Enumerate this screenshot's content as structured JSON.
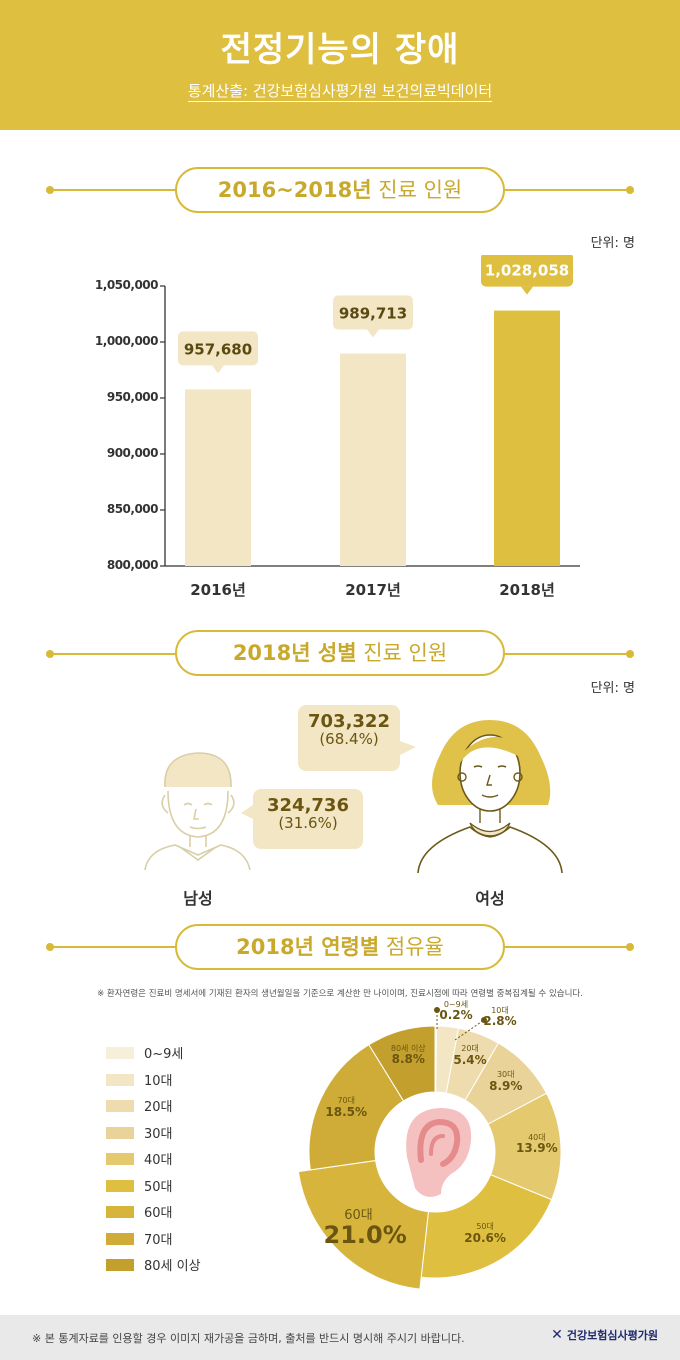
{
  "header": {
    "title": "전정기능의 장애",
    "source": "통계산출: 건강보험심사평가원 보건의료빅데이터"
  },
  "sections": {
    "s1": {
      "bold": "2016~2018년",
      "light": " 진료 인원"
    },
    "s2": {
      "bold": "2018년 성별",
      "light": " 진료 인원"
    },
    "s3": {
      "bold": "2018년 연령별",
      "light": " 점유율"
    }
  },
  "chart_data": [
    {
      "type": "bar",
      "title": "2016~2018년 진료 인원",
      "unit": "단위: 명",
      "categories": [
        "2016년",
        "2017년",
        "2018년"
      ],
      "values": [
        957680,
        989713,
        1028058
      ],
      "value_labels": [
        "957,680",
        "989,713",
        "1,028,058"
      ],
      "ylim": [
        800000,
        1050000
      ],
      "yticks": [
        "1,050,000",
        "1,000,000",
        "950,000",
        "900,000",
        "850,000",
        "800,000"
      ],
      "colors": [
        "#f3e6c4",
        "#f3e6c4",
        "#dfbf3f"
      ]
    },
    {
      "type": "pie",
      "title": "2018년 성별 진료 인원",
      "unit": "단위: 명",
      "categories": [
        "남성",
        "여성"
      ],
      "values": [
        324736,
        703322
      ],
      "value_labels": [
        "324,736",
        "703,322"
      ],
      "percent_labels": [
        "(31.6%)",
        "(68.4%)"
      ]
    },
    {
      "type": "pie",
      "title": "2018년 연령별 점유율",
      "note": "※ 환자연령은 진료비 명세서에 기재된 환자의 생년월일을 기준으로 계산한 만 나이이며, 진료시점에 따라 연령별 중복집계될 수 있습니다.",
      "categories": [
        "0~9세",
        "10대",
        "20대",
        "30대",
        "40대",
        "50대",
        "60대",
        "70대",
        "80세 이상"
      ],
      "values": [
        0.2,
        2.8,
        5.4,
        8.9,
        13.9,
        20.6,
        21.0,
        18.5,
        8.8
      ],
      "slice_labels": [
        "0~9세",
        "10대",
        "20대",
        "30대",
        "40대",
        "50대",
        "60대",
        "70대",
        "80세 이상"
      ],
      "percent_labels": [
        "0.2%",
        "2.8%",
        "5.4%",
        "8.9%",
        "13.9%",
        "20.6%",
        "21.0%",
        "18.5%",
        "8.8%"
      ],
      "colors": [
        "#f6efd9",
        "#f3e6c4",
        "#efdcae",
        "#ead398",
        "#e5c96f",
        "#dfbf3f",
        "#d7b53d",
        "#cfac37",
        "#c3a02e"
      ]
    }
  ],
  "footer": {
    "note": "※ 본 통계자료를 인용할 경우 이미지 재가공을 금하며, 출처를 반드시 명시해 주시기 바랍니다.",
    "logo": "건강보험심사평가원"
  }
}
